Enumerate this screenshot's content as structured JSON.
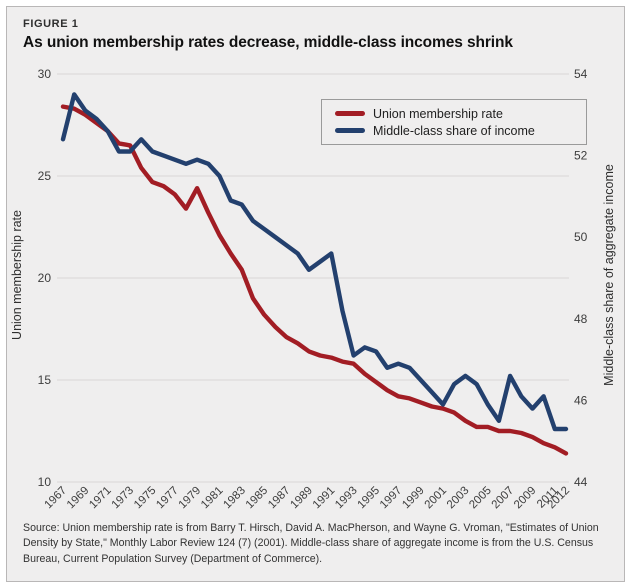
{
  "figure": {
    "eyebrow": "FIGURE 1",
    "title": "As union membership rates decrease, middle-class incomes shrink",
    "source": "Source: Union membership rate is from Barry T. Hirsch, David A. MacPherson, and Wayne G. Vroman, \"Estimates of Union Density by State,\" Monthly Labor Review 124 (7) (2001). Middle-class share of aggregate income is from the U.S. Census Bureau, Current Population Survey (Department of Commerce)."
  },
  "colors": {
    "union_line": "#a21d24",
    "income_line": "#23406e",
    "grid": "#d8d6d6",
    "figure_bg": "#efeeee",
    "figure_border": "#b9b7b7"
  },
  "chart_data": {
    "type": "line",
    "title": "As union membership rates decrease, middle-class incomes shrink",
    "grid": true,
    "legend_position": "top-right",
    "legend": [
      "Union membership rate",
      "Middle-class share of income"
    ],
    "x": [
      1967,
      1968,
      1969,
      1970,
      1971,
      1972,
      1973,
      1974,
      1975,
      1976,
      1977,
      1978,
      1979,
      1980,
      1981,
      1982,
      1983,
      1984,
      1985,
      1986,
      1987,
      1988,
      1989,
      1990,
      1991,
      1992,
      1993,
      1994,
      1995,
      1996,
      1997,
      1998,
      1999,
      2000,
      2001,
      2002,
      2003,
      2004,
      2005,
      2006,
      2007,
      2008,
      2009,
      2010,
      2011,
      2012
    ],
    "x_tick_labels": [
      "1967",
      "1969",
      "1971",
      "1973",
      "1975",
      "1977",
      "1979",
      "1981",
      "1983",
      "1985",
      "1987",
      "1989",
      "1991",
      "1993",
      "1995",
      "1997",
      "1999",
      "2001",
      "2003",
      "2005",
      "2007",
      "2009",
      "2011",
      "2012"
    ],
    "left_axis": {
      "label": "Union membership rate",
      "ticks": [
        30,
        25,
        20,
        15,
        10
      ],
      "range": [
        10,
        30
      ]
    },
    "right_axis": {
      "label": "Middle-class share of aggregate income",
      "ticks": [
        54,
        52,
        50,
        48,
        46,
        44
      ],
      "range": [
        44,
        54
      ]
    },
    "series": [
      {
        "name": "Union membership rate",
        "axis": "left",
        "color": "#a21d24",
        "values": [
          28.4,
          28.3,
          28.0,
          27.6,
          27.2,
          26.6,
          26.5,
          25.4,
          24.7,
          24.5,
          24.1,
          23.4,
          24.4,
          23.2,
          22.1,
          21.2,
          20.4,
          19.0,
          18.2,
          17.6,
          17.1,
          16.8,
          16.4,
          16.2,
          16.1,
          15.9,
          15.8,
          15.3,
          14.9,
          14.5,
          14.2,
          14.1,
          13.9,
          13.7,
          13.6,
          13.4,
          13.0,
          12.7,
          12.7,
          12.5,
          12.5,
          12.4,
          12.2,
          11.9,
          11.7,
          11.4
        ]
      },
      {
        "name": "Middle-class share of income",
        "axis": "right",
        "color": "#23406e",
        "values": [
          52.4,
          53.5,
          53.1,
          52.9,
          52.6,
          52.1,
          52.1,
          52.4,
          52.1,
          52.0,
          51.9,
          51.8,
          51.9,
          51.8,
          51.5,
          50.9,
          50.8,
          50.4,
          50.2,
          50.0,
          49.8,
          49.6,
          49.2,
          49.4,
          49.6,
          48.2,
          47.1,
          47.3,
          47.2,
          46.8,
          46.9,
          46.8,
          46.5,
          46.2,
          45.9,
          46.4,
          46.6,
          46.4,
          45.9,
          45.5,
          46.6,
          46.1,
          45.8,
          46.1,
          45.3,
          45.3
        ]
      }
    ]
  }
}
